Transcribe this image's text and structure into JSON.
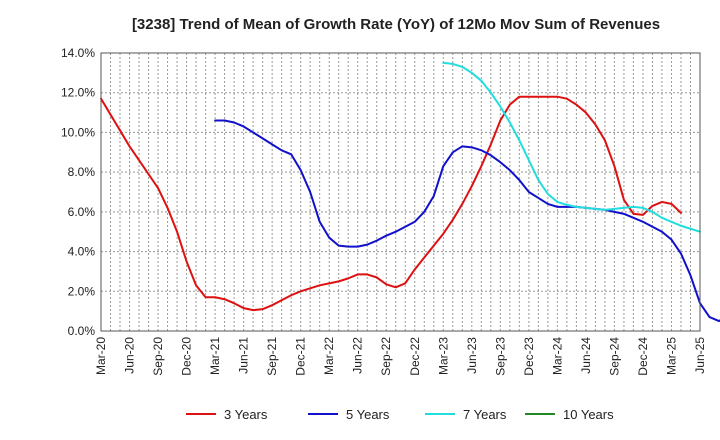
{
  "chart_data": {
    "type": "line",
    "title": "[3238]  Trend of Mean of Growth Rate (YoY) of 12Mo Mov Sum of Revenues",
    "xlabel": "",
    "ylabel": "",
    "ylim": [
      0,
      14
    ],
    "y_ticks": [
      "0.0%",
      "2.0%",
      "4.0%",
      "6.0%",
      "8.0%",
      "10.0%",
      "12.0%",
      "14.0%"
    ],
    "x_ticks": [
      "Mar-20",
      "Jun-20",
      "Sep-20",
      "Dec-20",
      "Mar-21",
      "Jun-21",
      "Sep-21",
      "Dec-21",
      "Mar-22",
      "Jun-22",
      "Sep-22",
      "Dec-22",
      "Mar-23",
      "Jun-23",
      "Sep-23",
      "Dec-23",
      "Mar-24",
      "Jun-24",
      "Sep-24",
      "Dec-24",
      "Mar-25",
      "Jun-25"
    ],
    "x_start": "Mar-20",
    "grid": true,
    "legend_position": "bottom",
    "series": [
      {
        "name": "3 Years",
        "color": "#dd1111",
        "start_index": 0,
        "values": [
          11.7,
          10.9,
          10.1,
          9.3,
          8.6,
          7.9,
          7.2,
          6.2,
          5.0,
          3.5,
          2.3,
          1.7,
          1.7,
          1.6,
          1.4,
          1.15,
          1.05,
          1.1,
          1.3,
          1.55,
          1.8,
          2.0,
          2.15,
          2.3,
          2.4,
          2.5,
          2.65,
          2.85,
          2.85,
          2.7,
          2.35,
          2.2,
          2.4,
          3.1,
          3.7,
          4.3,
          4.9,
          5.6,
          6.4,
          7.3,
          8.3,
          9.4,
          10.6,
          11.4,
          11.8,
          11.8,
          11.8,
          11.8,
          11.8,
          11.7,
          11.4,
          11.0,
          10.4,
          9.6,
          8.3,
          6.6,
          5.9,
          5.85,
          6.3,
          6.5,
          6.4,
          5.95
        ]
      },
      {
        "name": "5 Years",
        "color": "#1111cc",
        "start_index": 12,
        "values": [
          10.6,
          10.6,
          10.5,
          10.3,
          10.0,
          9.7,
          9.4,
          9.1,
          8.9,
          8.1,
          7.0,
          5.5,
          4.7,
          4.3,
          4.25,
          4.25,
          4.35,
          4.55,
          4.8,
          5.0,
          5.25,
          5.5,
          6.0,
          6.8,
          8.3,
          9.0,
          9.3,
          9.25,
          9.1,
          8.85,
          8.5,
          8.1,
          7.6,
          7.0,
          6.7,
          6.4,
          6.25,
          6.25,
          6.25,
          6.2,
          6.15,
          6.1,
          6.0,
          5.9,
          5.7,
          5.5,
          5.25,
          5.0,
          4.6,
          3.9,
          2.8,
          1.4,
          0.7,
          0.5,
          0.8
        ]
      },
      {
        "name": "7 Years",
        "color": "#22dddd",
        "start_index": 36,
        "values": [
          13.5,
          13.45,
          13.3,
          13.0,
          12.6,
          12.0,
          11.3,
          10.5,
          9.6,
          8.6,
          7.6,
          6.9,
          6.5,
          6.35,
          6.25,
          6.2,
          6.15,
          6.1,
          6.15,
          6.2,
          6.25,
          6.2,
          6.0,
          5.7,
          5.5,
          5.3,
          5.15,
          5.0
        ]
      },
      {
        "name": "10 Years",
        "color": "#228822",
        "start_index": 0,
        "values": []
      }
    ]
  }
}
